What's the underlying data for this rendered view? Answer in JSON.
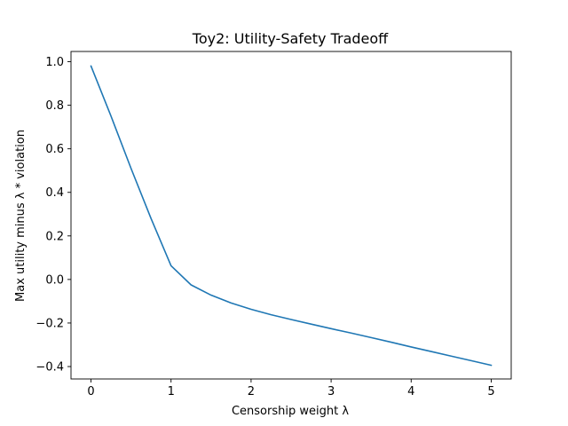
{
  "chart_data": {
    "type": "line",
    "title": "Toy2: Utility-Safety Tradeoff",
    "xlabel": "Censorship weight λ",
    "ylabel": "Max utility minus λ * violation",
    "xlim": [
      -0.25,
      5.25
    ],
    "ylim": [
      -0.457,
      1.047
    ],
    "xticks": [
      0,
      1,
      2,
      3,
      4,
      5
    ],
    "xtick_labels": [
      "0",
      "1",
      "2",
      "3",
      "4",
      "5"
    ],
    "yticks": [
      -0.4,
      -0.2,
      0.0,
      0.2,
      0.4,
      0.6,
      0.8,
      1.0
    ],
    "ytick_labels": [
      "−0.4",
      "−0.2",
      "0.0",
      "0.2",
      "0.4",
      "0.6",
      "0.8",
      "1.0"
    ],
    "grid": false,
    "series": [
      {
        "color": "#1f77b4",
        "x": [
          0,
          0.25,
          0.5,
          0.75,
          1.0,
          1.25,
          1.5,
          1.75,
          2.0,
          2.25,
          2.5,
          2.75,
          3.0,
          3.25,
          3.5,
          3.75,
          4.0,
          4.25,
          4.5,
          4.75,
          5.0
        ],
        "y": [
          0.98,
          0.75,
          0.51,
          0.28,
          0.063,
          -0.025,
          -0.072,
          -0.108,
          -0.137,
          -0.162,
          -0.184,
          -0.205,
          -0.226,
          -0.246,
          -0.267,
          -0.288,
          -0.31,
          -0.331,
          -0.352,
          -0.373,
          -0.394
        ]
      }
    ]
  }
}
